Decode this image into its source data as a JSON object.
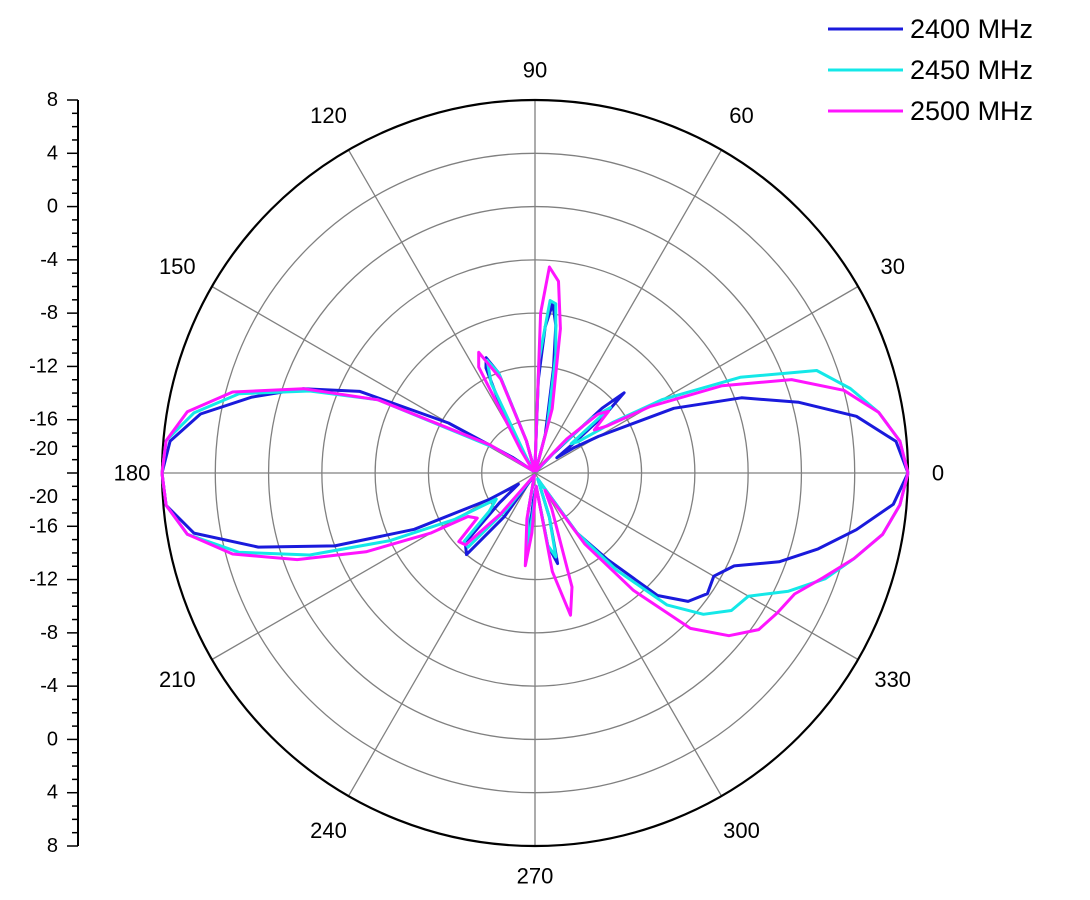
{
  "chart_data": {
    "type": "polar-line",
    "angle_unit": "degrees",
    "radial_axis": {
      "range": [
        -20,
        8
      ],
      "tick_labels": [
        "8",
        "4",
        "0",
        "-4",
        "-8",
        "-12",
        "-16",
        "-20",
        "-20",
        "-16",
        "-12",
        "-8",
        "-4",
        "0",
        "4",
        "8"
      ],
      "grid_rings": [
        -16,
        -12,
        -8,
        -4,
        0,
        4
      ]
    },
    "angle_axis": {
      "ticks": [
        0,
        30,
        60,
        90,
        120,
        150,
        180,
        210,
        240,
        270,
        300,
        330
      ],
      "tick_labels": [
        "0",
        "30",
        "60",
        "90",
        "120",
        "150",
        "180",
        "210",
        "240",
        "270",
        "300",
        "330"
      ]
    },
    "grid": true,
    "legend": {
      "position": "top-right"
    },
    "series": [
      {
        "name": "2400 MHz",
        "color": "#1a1adc",
        "points": [
          [
            0,
            8
          ],
          [
            5,
            7.2
          ],
          [
            10,
            4.5
          ],
          [
            15,
            0.5
          ],
          [
            20,
            -3.5
          ],
          [
            25,
            -8.5
          ],
          [
            30,
            -14.5
          ],
          [
            33,
            -16.5
          ],
          [
            35,
            -18
          ],
          [
            38,
            -16
          ],
          [
            40,
            -13
          ],
          [
            42,
            -11
          ],
          [
            44,
            -13
          ],
          [
            47,
            -18
          ],
          [
            50,
            -19.5
          ],
          [
            55,
            -19.8
          ],
          [
            70,
            -19.8
          ],
          [
            75,
            -17
          ],
          [
            80,
            -12
          ],
          [
            82,
            -8.8
          ],
          [
            84,
            -7.2
          ],
          [
            86,
            -9
          ],
          [
            88,
            -13
          ],
          [
            90,
            -19.5
          ],
          [
            100,
            -19.8
          ],
          [
            105,
            -17.5
          ],
          [
            110,
            -12
          ],
          [
            113,
            -10.6
          ],
          [
            115,
            -11.3
          ],
          [
            118,
            -15
          ],
          [
            122,
            -19.5
          ],
          [
            130,
            -19.8
          ],
          [
            145,
            -18
          ],
          [
            150,
            -12.5
          ],
          [
            155,
            -5.5
          ],
          [
            160,
            -1.5
          ],
          [
            165,
            2
          ],
          [
            170,
            5.5
          ],
          [
            175,
            7.5
          ],
          [
            180,
            8
          ],
          [
            185,
            7.8
          ],
          [
            190,
            6
          ],
          [
            195,
            1.5
          ],
          [
            200,
            -4
          ],
          [
            205,
            -10
          ],
          [
            210,
            -16
          ],
          [
            214,
            -18.5
          ],
          [
            220,
            -16.5
          ],
          [
            225,
            -12.6
          ],
          [
            230,
            -12
          ],
          [
            235,
            -16
          ],
          [
            240,
            -19.5
          ],
          [
            255,
            -19.8
          ],
          [
            260,
            -17
          ],
          [
            264,
            -14
          ],
          [
            267,
            -18
          ],
          [
            275,
            -19
          ],
          [
            280,
            -14.5
          ],
          [
            284,
            -13
          ],
          [
            288,
            -16.5
          ],
          [
            295,
            -19.5
          ],
          [
            300,
            -19
          ],
          [
            305,
            -14.5
          ],
          [
            310,
            -11.5
          ],
          [
            315,
            -7
          ],
          [
            320,
            -5
          ],
          [
            325,
            -4.2
          ],
          [
            330,
            -4.5
          ],
          [
            335,
            -3.5
          ],
          [
            340,
            -0.5
          ],
          [
            345,
            2
          ],
          [
            350,
            4.5
          ],
          [
            355,
            7
          ],
          [
            360,
            8
          ]
        ]
      },
      {
        "name": "2450 MHz",
        "color": "#14e8e8",
        "points": [
          [
            0,
            8
          ],
          [
            5,
            7.5
          ],
          [
            10,
            6.2
          ],
          [
            15,
            4.5
          ],
          [
            20,
            2.5
          ],
          [
            25,
            -3
          ],
          [
            30,
            -9
          ],
          [
            33,
            -13
          ],
          [
            36,
            -16
          ],
          [
            39,
            -16.5
          ],
          [
            41,
            -12.5
          ],
          [
            44,
            -14
          ],
          [
            47,
            -17.5
          ],
          [
            50,
            -19.5
          ],
          [
            55,
            -19.8
          ],
          [
            70,
            -19.8
          ],
          [
            75,
            -16.5
          ],
          [
            80,
            -11
          ],
          [
            83,
            -7.2
          ],
          [
            85,
            -7
          ],
          [
            88,
            -11.5
          ],
          [
            90,
            -19.5
          ],
          [
            100,
            -19.8
          ],
          [
            105,
            -17.5
          ],
          [
            110,
            -12
          ],
          [
            113,
            -10.8
          ],
          [
            116,
            -12.5
          ],
          [
            120,
            -19
          ],
          [
            130,
            -19.8
          ],
          [
            140,
            -19.5
          ],
          [
            148,
            -16.5
          ],
          [
            155,
            -7
          ],
          [
            160,
            -2
          ],
          [
            165,
            3
          ],
          [
            170,
            6
          ],
          [
            175,
            7.8
          ],
          [
            180,
            8
          ],
          [
            185,
            7.8
          ],
          [
            190,
            6.5
          ],
          [
            195,
            3
          ],
          [
            200,
            -2
          ],
          [
            205,
            -8
          ],
          [
            210,
            -13
          ],
          [
            214,
            -16.5
          ],
          [
            220,
            -15.5
          ],
          [
            224,
            -12.6
          ],
          [
            228,
            -12.5
          ],
          [
            232,
            -16.5
          ],
          [
            238,
            -19.5
          ],
          [
            255,
            -19.8
          ],
          [
            260,
            -17
          ],
          [
            264,
            -14
          ],
          [
            267,
            -17
          ],
          [
            275,
            -19
          ],
          [
            280,
            -14.5
          ],
          [
            284,
            -13.5
          ],
          [
            288,
            -16.5
          ],
          [
            295,
            -19.5
          ],
          [
            300,
            -19
          ],
          [
            305,
            -14.5
          ],
          [
            310,
            -10.5
          ],
          [
            315,
            -6
          ],
          [
            320,
            -3.5
          ],
          [
            325,
            -2
          ],
          [
            330,
            -1.5
          ],
          [
            335,
            1
          ],
          [
            340,
            3.2
          ],
          [
            345,
            4.8
          ],
          [
            350,
            6.5
          ],
          [
            355,
            7.5
          ],
          [
            360,
            8
          ]
        ]
      },
      {
        "name": "2500 MHz",
        "color": "#ff14ff",
        "points": [
          [
            0,
            8
          ],
          [
            5,
            7.5
          ],
          [
            10,
            6.2
          ],
          [
            15,
            4
          ],
          [
            20,
            0.5
          ],
          [
            25,
            -4.5
          ],
          [
            30,
            -10
          ],
          [
            33,
            -13.5
          ],
          [
            36,
            -14.5
          ],
          [
            40,
            -12.8
          ],
          [
            43,
            -13.5
          ],
          [
            47,
            -16.5
          ],
          [
            50,
            -19
          ],
          [
            55,
            -19.8
          ],
          [
            70,
            -19.8
          ],
          [
            75,
            -15
          ],
          [
            80,
            -9
          ],
          [
            83,
            -5.5
          ],
          [
            86,
            -4.5
          ],
          [
            88,
            -8
          ],
          [
            90,
            -19.5
          ],
          [
            100,
            -19.8
          ],
          [
            105,
            -17.5
          ],
          [
            110,
            -12.5
          ],
          [
            115,
            -10
          ],
          [
            118,
            -11
          ],
          [
            122,
            -18
          ],
          [
            130,
            -19.8
          ],
          [
            140,
            -19.5
          ],
          [
            148,
            -16
          ],
          [
            155,
            -7
          ],
          [
            160,
            -1.5
          ],
          [
            165,
            3.5
          ],
          [
            170,
            6.5
          ],
          [
            175,
            7.8
          ],
          [
            180,
            8
          ],
          [
            185,
            7.8
          ],
          [
            190,
            6.5
          ],
          [
            195,
            3.5
          ],
          [
            200,
            -1
          ],
          [
            205,
            -6
          ],
          [
            210,
            -11
          ],
          [
            213,
            -14
          ],
          [
            218,
            -14.5
          ],
          [
            222,
            -12.3
          ],
          [
            226,
            -12.5
          ],
          [
            230,
            -16
          ],
          [
            237,
            -19.5
          ],
          [
            255,
            -19.8
          ],
          [
            260,
            -16.5
          ],
          [
            264,
            -13
          ],
          [
            267,
            -15.5
          ],
          [
            275,
            -19
          ],
          [
            280,
            -12.5
          ],
          [
            284,
            -9
          ],
          [
            288,
            -11
          ],
          [
            295,
            -17
          ],
          [
            300,
            -18.5
          ],
          [
            305,
            -13.5
          ],
          [
            310,
            -8.5
          ],
          [
            315,
            -3.5
          ],
          [
            320,
            -1
          ],
          [
            325,
            0.5
          ],
          [
            330,
            1
          ],
          [
            335,
            1.5
          ],
          [
            340,
            3
          ],
          [
            345,
            4.8
          ],
          [
            350,
            6.5
          ],
          [
            355,
            7.5
          ],
          [
            360,
            8
          ]
        ]
      }
    ]
  }
}
